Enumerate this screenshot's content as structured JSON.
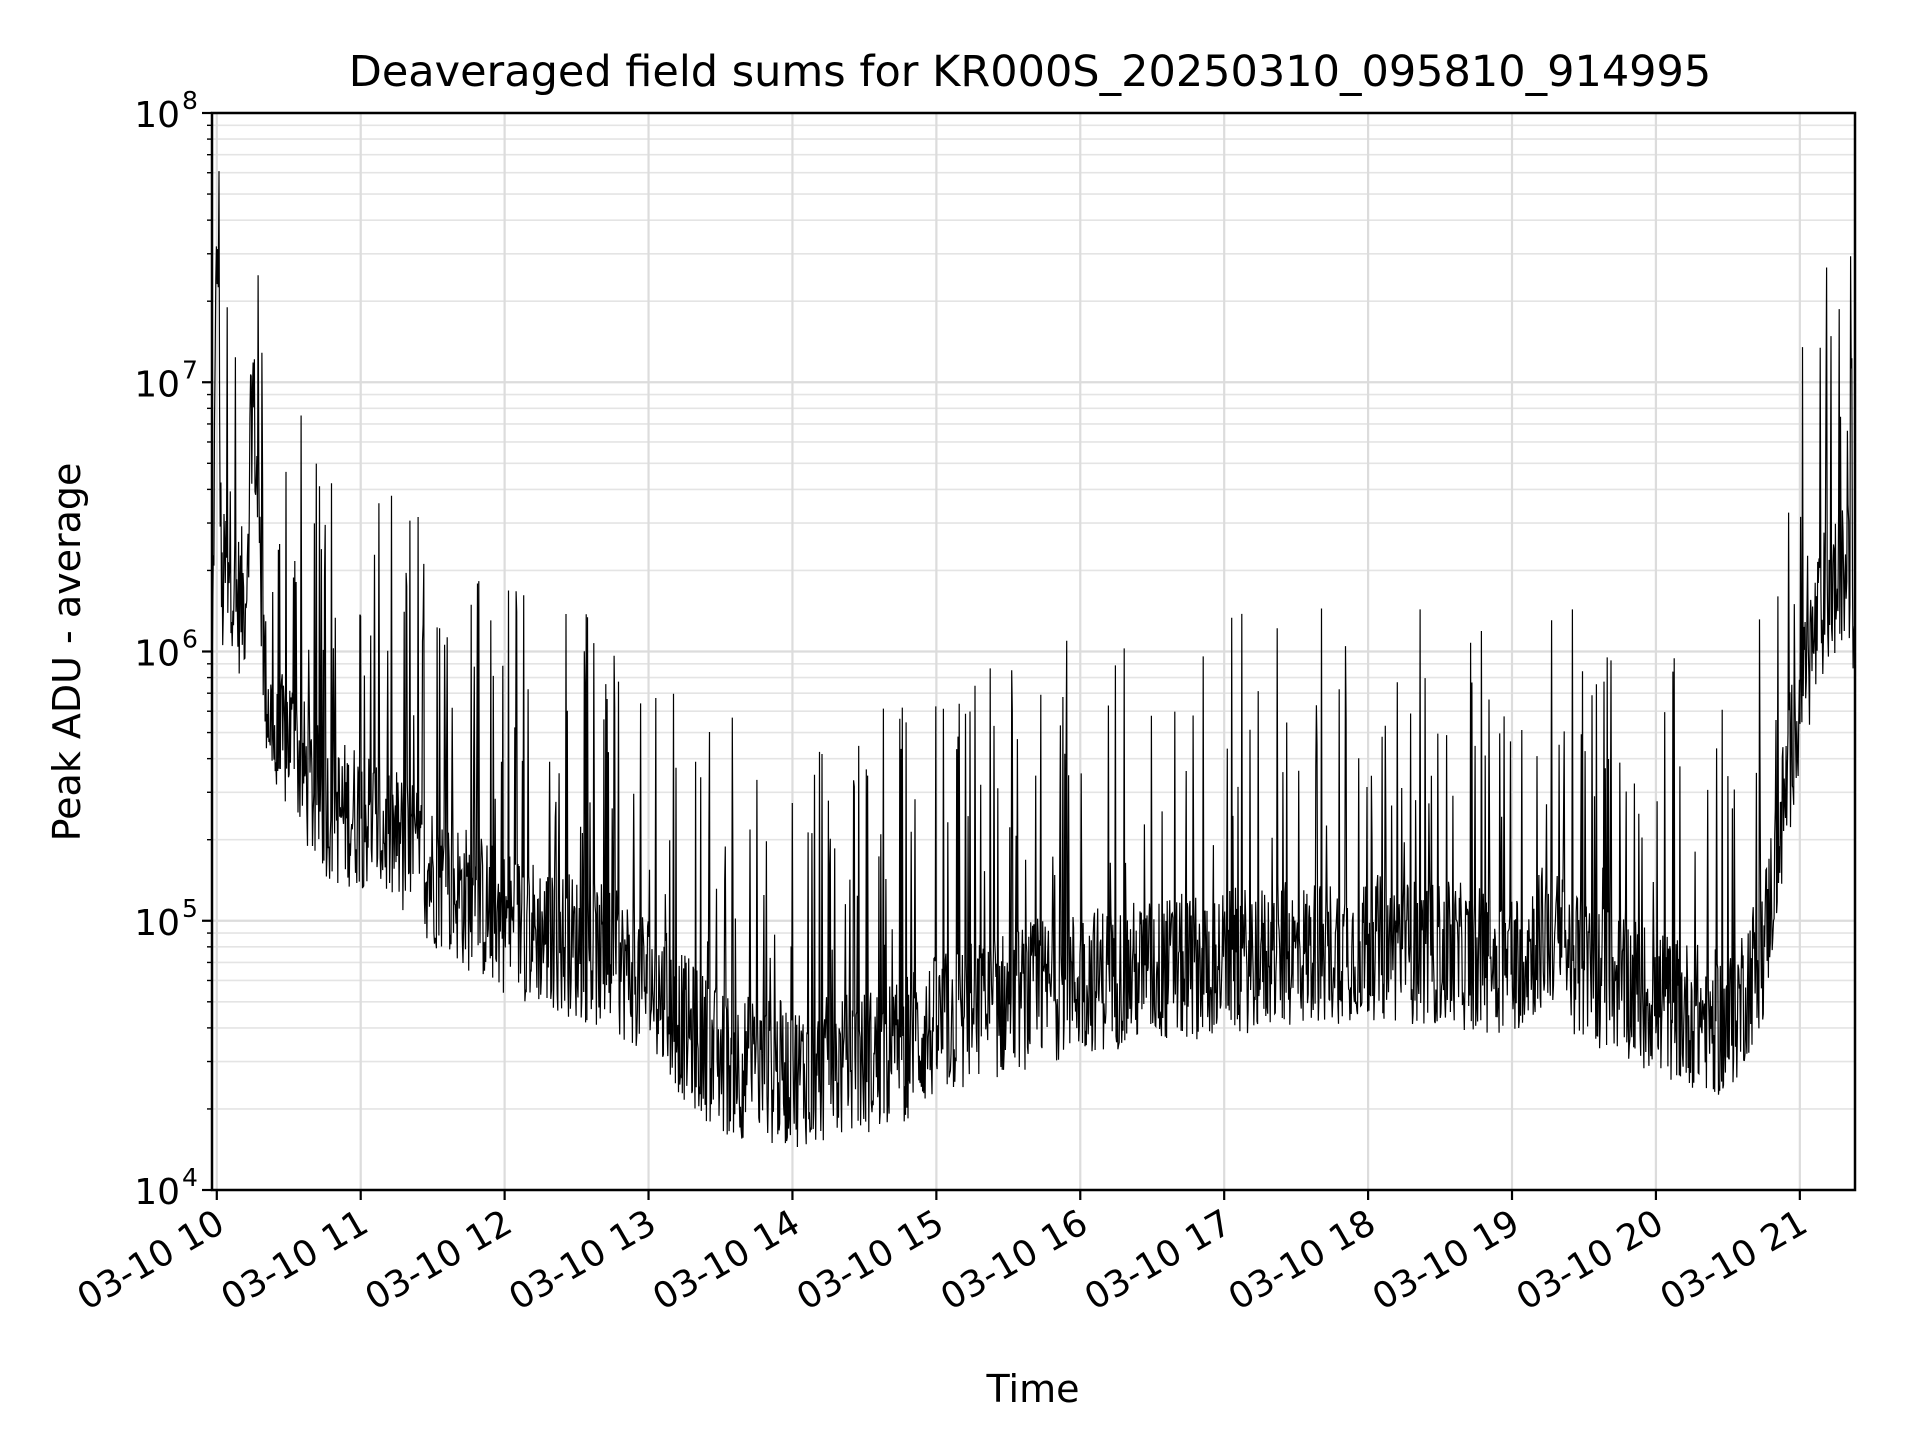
{
  "chart_data": {
    "type": "line",
    "title": "Deaveraged field sums for KR000S_20250310_095810_914995",
    "xlabel": "Time",
    "ylabel": "Peak ADU - average",
    "yscale": "log",
    "ylim": [
      10000,
      100000000
    ],
    "xlim": [
      "03-10 09:58",
      "03-10 21:23"
    ],
    "grid": true,
    "line_color": "#000000",
    "x_ticks": [
      "03-10 10",
      "03-10 11",
      "03-10 12",
      "03-10 13",
      "03-10 14",
      "03-10 15",
      "03-10 16",
      "03-10 17",
      "03-10 18",
      "03-10 19",
      "03-10 20",
      "03-10 21"
    ],
    "y_ticks": [
      {
        "base": "10",
        "exp": "4"
      },
      {
        "base": "10",
        "exp": "5"
      },
      {
        "base": "10",
        "exp": "6"
      },
      {
        "base": "10",
        "exp": "7"
      },
      {
        "base": "10",
        "exp": "8"
      }
    ],
    "series": [
      {
        "x": [
          "03-10 09:58",
          "03-10 10:00",
          "03-10 10:02",
          "03-10 10:05",
          "03-10 10:08",
          "03-10 10:12",
          "03-10 10:15",
          "03-10 10:20",
          "03-10 10:25",
          "03-10 10:30",
          "03-10 10:40",
          "03-10 10:50",
          "03-10 11:00",
          "03-10 11:15",
          "03-10 11:30",
          "03-10 11:45",
          "03-10 12:00",
          "03-10 12:15",
          "03-10 12:30",
          "03-10 12:45",
          "03-10 13:00",
          "03-10 13:15",
          "03-10 13:30",
          "03-10 13:45",
          "03-10 14:00",
          "03-10 14:15",
          "03-10 14:30",
          "03-10 14:45",
          "03-10 15:00",
          "03-10 15:15",
          "03-10 15:30",
          "03-10 15:45",
          "03-10 16:00",
          "03-10 16:30",
          "03-10 17:00",
          "03-10 17:30",
          "03-10 18:00",
          "03-10 18:30",
          "03-10 19:00",
          "03-10 19:15",
          "03-10 19:30",
          "03-10 19:45",
          "03-10 20:00",
          "03-10 20:15",
          "03-10 20:30",
          "03-10 20:45",
          "03-10 21:00",
          "03-10 21:10",
          "03-10 21:20",
          "03-10 21:23"
        ],
        "values": [
          600000,
          40000000,
          1500000,
          2500000,
          1500000,
          1600000,
          10000000,
          800000,
          400000,
          500000,
          300000,
          250000,
          250000,
          200000,
          150000,
          120000,
          100000,
          90000,
          80000,
          70000,
          60000,
          40000,
          30000,
          28000,
          27000,
          28000,
          30000,
          33000,
          40000,
          45000,
          50000,
          55000,
          60000,
          65000,
          70000,
          75000,
          80000,
          75000,
          70000,
          90000,
          65000,
          60000,
          50000,
          45000,
          40000,
          80000,
          700000,
          1500000,
          2000000,
          1500000
        ]
      }
    ]
  }
}
